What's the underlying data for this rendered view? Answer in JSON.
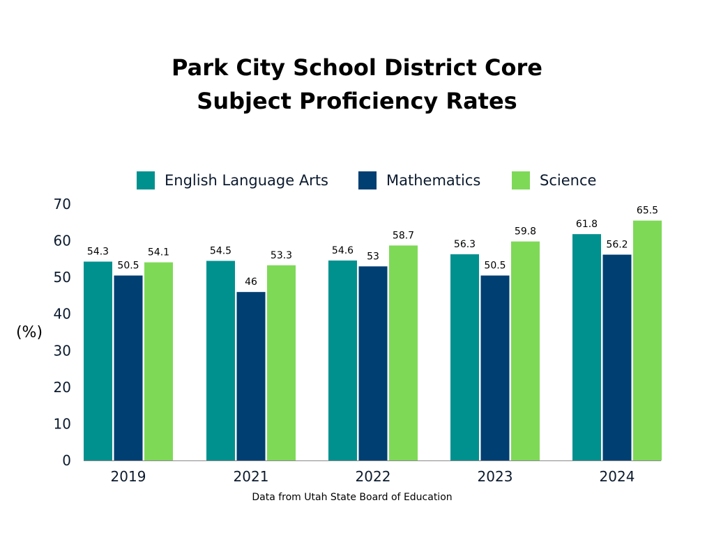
{
  "chart_data": {
    "type": "bar",
    "title_lines": [
      "Park City School District Core",
      "Subject Proficiency Rates"
    ],
    "ylabel": "(%)",
    "xlabel": "",
    "ylim": [
      0,
      70
    ],
    "yticks": [
      0,
      10,
      20,
      30,
      40,
      50,
      60,
      70
    ],
    "grid": false,
    "legend_position": "top",
    "categories": [
      "2019",
      "2021",
      "2022",
      "2023",
      "2024"
    ],
    "series": [
      {
        "name": "English Language Arts",
        "color": "#00918f",
        "values": [
          54.3,
          54.5,
          54.6,
          56.3,
          61.8
        ],
        "labels": [
          "54.3",
          "54.5",
          "54.6",
          "56.3",
          "61.8"
        ]
      },
      {
        "name": "Mathematics",
        "color": "#003f72",
        "values": [
          50.5,
          46,
          53,
          50.5,
          56.2
        ],
        "labels": [
          "50.5",
          "46",
          "53",
          "50.5",
          "56.2"
        ]
      },
      {
        "name": "Science",
        "color": "#7ed957",
        "values": [
          54.1,
          53.3,
          58.7,
          59.8,
          65.5
        ],
        "labels": [
          "54.1",
          "53.3",
          "58.7",
          "59.8",
          "65.5"
        ]
      }
    ],
    "source_note": "Data from Utah State Board of Education"
  }
}
